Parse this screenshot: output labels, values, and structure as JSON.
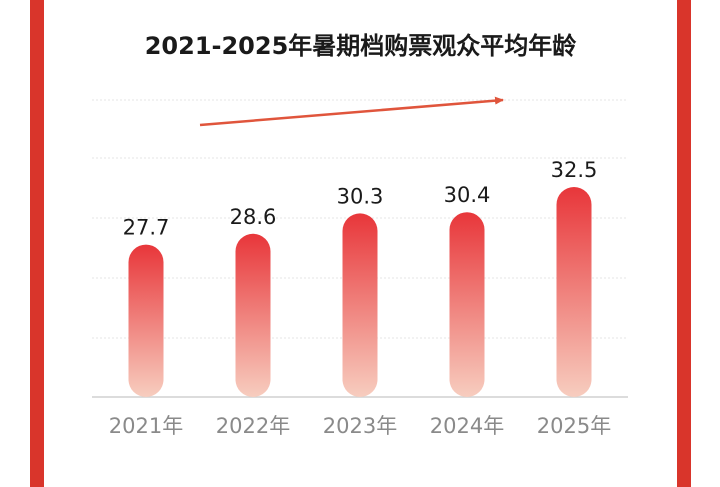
{
  "chart_data": {
    "type": "bar",
    "title": "2021-2025年暑期档购票观众平均年龄",
    "categories": [
      "2021年",
      "2022年",
      "2023年",
      "2024年",
      "2025年"
    ],
    "values": [
      27.7,
      28.6,
      30.3,
      30.4,
      32.5
    ],
    "value_labels": [
      "27.7",
      "28.6",
      "30.3",
      "30.4",
      "32.5"
    ],
    "xlabel": "",
    "ylabel": "",
    "ylim": [
      15,
      36
    ],
    "grid": true,
    "legend": "none",
    "trend_arrow": true,
    "colors": {
      "bar_top": "#e8363a",
      "bar_bottom": "#f7cdbf",
      "arrow": "#e0553c",
      "frame": "#d9352b"
    }
  }
}
